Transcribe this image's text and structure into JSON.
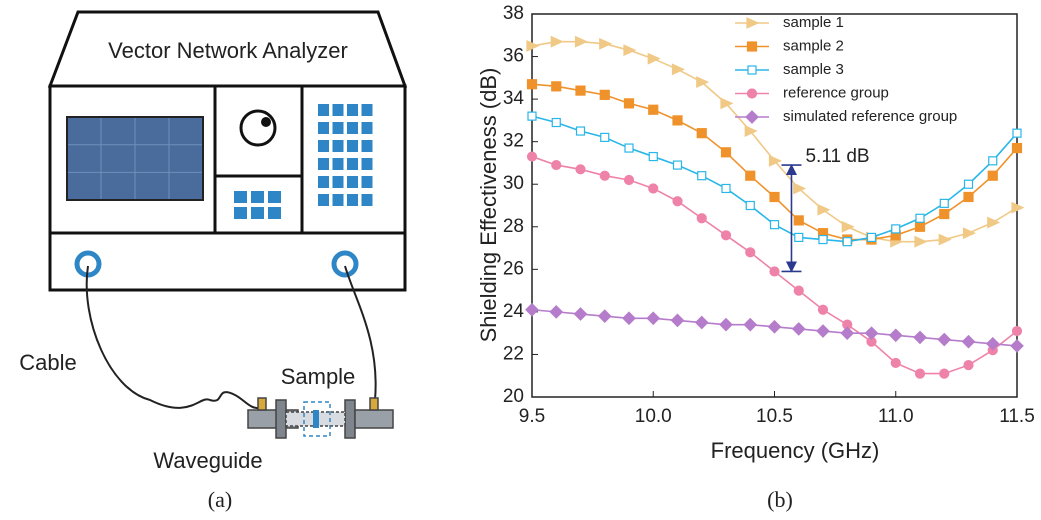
{
  "figure": {
    "panel_a": {
      "title": "Vector Network Analyzer",
      "labels": [
        "Cable",
        "Sample",
        "Waveguide"
      ]
    },
    "captions": [
      "(a)",
      "(b)"
    ]
  },
  "chart_data": {
    "type": "line",
    "x_label": "Frequency (GHz)",
    "y_label": "Shielding Effectiveness (dB)",
    "x": [
      9.5,
      9.6,
      9.7,
      9.8,
      9.9,
      10.0,
      10.1,
      10.2,
      10.3,
      10.4,
      10.5,
      10.6,
      10.7,
      10.8,
      10.9,
      11.0,
      11.1,
      11.2,
      11.3,
      11.4,
      11.5
    ],
    "series": [
      {
        "name": "sample 1",
        "color": "#f0c987",
        "marker": "triangle-right",
        "values": [
          36.5,
          36.7,
          36.7,
          36.6,
          36.3,
          35.9,
          35.4,
          34.8,
          33.8,
          32.5,
          31.1,
          29.8,
          28.8,
          28.0,
          27.5,
          27.3,
          27.3,
          27.4,
          27.7,
          28.2,
          28.9
        ]
      },
      {
        "name": "sample 2",
        "color": "#f0922b",
        "marker": "square",
        "values": [
          34.7,
          34.6,
          34.4,
          34.2,
          33.8,
          33.5,
          33.0,
          32.4,
          31.5,
          30.4,
          29.4,
          28.3,
          27.7,
          27.4,
          27.4,
          27.6,
          28.0,
          28.6,
          29.4,
          30.4,
          31.7
        ]
      },
      {
        "name": "sample 3",
        "color": "#29b6e8",
        "marker": "open-square",
        "values": [
          33.2,
          32.9,
          32.5,
          32.2,
          31.7,
          31.3,
          30.9,
          30.4,
          29.8,
          29.0,
          28.1,
          27.5,
          27.4,
          27.3,
          27.5,
          27.9,
          28.4,
          29.1,
          30.0,
          31.1,
          32.4
        ]
      },
      {
        "name": "reference group",
        "color": "#ee82a8",
        "marker": "circle",
        "values": [
          31.3,
          30.9,
          30.7,
          30.4,
          30.2,
          29.8,
          29.2,
          28.4,
          27.6,
          26.8,
          25.9,
          25.0,
          24.1,
          23.4,
          22.6,
          21.6,
          21.1,
          21.1,
          21.5,
          22.2,
          23.1
        ]
      },
      {
        "name": "simulated reference group",
        "color": "#b57ccb",
        "marker": "diamond",
        "values": [
          24.1,
          24.0,
          23.9,
          23.8,
          23.7,
          23.7,
          23.6,
          23.5,
          23.4,
          23.4,
          23.3,
          23.2,
          23.1,
          23.0,
          23.0,
          22.9,
          22.8,
          22.7,
          22.6,
          22.5,
          22.4
        ]
      }
    ],
    "annotations": [
      {
        "text": "5.11 dB",
        "color": "#2b3a8f",
        "x": 10.57,
        "y_from": 30.9,
        "y_to": 25.9
      }
    ],
    "xlim": [
      9.5,
      11.5
    ],
    "xticks": [
      9.5,
      {
        "value": 10,
        "label": "10.0"
      },
      10.5,
      {
        "value": 11,
        "label": "11.0"
      },
      11.5
    ],
    "ylim": [
      20,
      38
    ],
    "yticks": [
      20,
      22,
      24,
      26,
      28,
      30,
      32,
      34,
      36,
      38
    ],
    "grid": false,
    "legend": "top-right"
  }
}
